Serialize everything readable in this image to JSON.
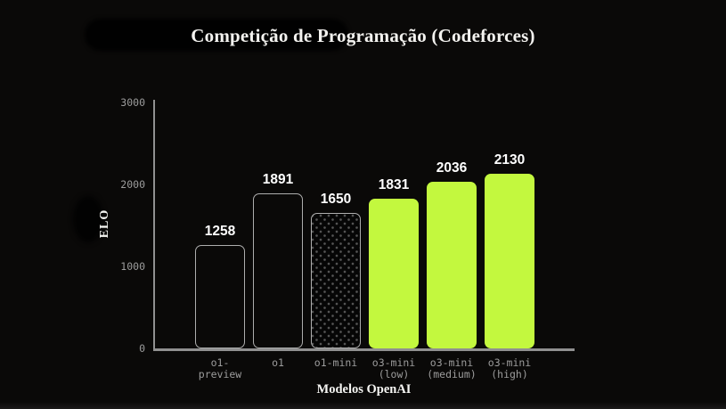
{
  "chart_data": {
    "type": "bar",
    "title": "Competição de Programação (Codeforces)",
    "xlabel": "Modelos OpenAI",
    "ylabel": "ELO",
    "ylim": [
      0,
      3000
    ],
    "yticks": [
      0,
      1000,
      2000,
      3000
    ],
    "categories": [
      "o1-preview",
      "o1",
      "o1-mini",
      "o3-mini\n(low)",
      "o3-mini\n(medium)",
      "o3-mini\n(high)"
    ],
    "values": [
      1258,
      1891,
      1650,
      1831,
      2036,
      2130
    ],
    "bar_styles": [
      "outline",
      "outline",
      "dotted",
      "solid",
      "solid",
      "solid"
    ],
    "grid": false,
    "legend": null,
    "colors": {
      "background": "#0a0908",
      "solid_fill": "#c3f83e",
      "outline_stroke": "#adadad",
      "axis": "#909090",
      "tick_label": "#9c9c9c",
      "value_label": "#ffffff",
      "title_text": "#f3f2ef"
    }
  }
}
